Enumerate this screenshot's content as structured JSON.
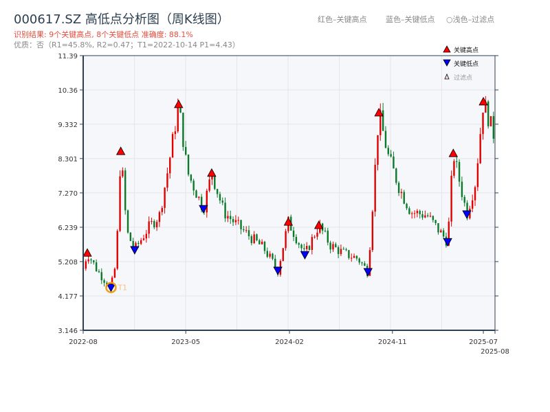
{
  "header": {
    "title": "000617.SZ 高低点分析图（周K线图）",
    "result": "识别结果: 9个关键高点, 8个关键低点  准确度: 88.1%",
    "quality": "优质：否（R1=45.8%, R2=0.47；T1=2022-10-14 P1=4.43）",
    "legend_red": "红色–关键高点",
    "legend_blue": "蓝色–关键低点",
    "legend_light": "○浅色–过滤点"
  },
  "chart_data": {
    "type": "candlestick",
    "title": "000617.SZ 高低点分析图（周K线图）",
    "x_range": [
      "2022-08-01",
      "2025-08-01"
    ],
    "ylim": [
      3.146,
      11.39
    ],
    "y_ticks": [
      "3.146",
      "4.177",
      "5.208",
      "6.239",
      "7.270",
      "8.301",
      "9.332",
      "10.36",
      "11.39"
    ],
    "x_ticks": [
      {
        "date": "2022-08-01",
        "label": "2022-08"
      },
      {
        "date": "2023-05-01",
        "label": "2023-05"
      },
      {
        "date": "2024-02-01",
        "label": "2024-02"
      },
      {
        "date": "2024-11-01",
        "label": "2024-11"
      },
      {
        "date": "2025-07-01",
        "label": "2025-07"
      },
      {
        "date": "2025-08-01",
        "label": "2025-08"
      }
    ],
    "grid": true,
    "colors": {
      "up": "#e00000",
      "down": "#0a7a2a",
      "high": "#ff0000",
      "low": "#0000ff",
      "t1": "#f39c12",
      "plot_bg": "#f5f7fa",
      "axis": "#2c3e50"
    },
    "legend": {
      "position": "top-right",
      "items": [
        "关键高点",
        "关键低点",
        "过滤点"
      ]
    },
    "price_path": [
      [
        "2022-08-01",
        5.0
      ],
      [
        "2022-08-12",
        5.47
      ],
      [
        "2022-09-10",
        4.9
      ],
      [
        "2022-10-14",
        4.43
      ],
      [
        "2022-10-28",
        5.2
      ],
      [
        "2022-11-09",
        8.52
      ],
      [
        "2022-11-25",
        6.1
      ],
      [
        "2022-12-16",
        5.56
      ],
      [
        "2023-01-20",
        6.2
      ],
      [
        "2023-02-20",
        6.6
      ],
      [
        "2023-03-15",
        8.0
      ],
      [
        "2023-04-12",
        9.93
      ],
      [
        "2023-05-05",
        7.9
      ],
      [
        "2023-06-17",
        6.79
      ],
      [
        "2023-07-09",
        7.87
      ],
      [
        "2023-08-10",
        6.7
      ],
      [
        "2023-09-15",
        6.3
      ],
      [
        "2023-10-20",
        5.95
      ],
      [
        "2023-11-25",
        5.6
      ],
      [
        "2024-01-01",
        4.94
      ],
      [
        "2024-01-29",
        6.4
      ],
      [
        "2024-03-13",
        5.41
      ],
      [
        "2024-04-19",
        6.3
      ],
      [
        "2024-05-20",
        5.7
      ],
      [
        "2024-06-25",
        5.45
      ],
      [
        "2024-08-01",
        5.3
      ],
      [
        "2024-08-28",
        4.9
      ],
      [
        "2024-09-26",
        9.68
      ],
      [
        "2024-10-20",
        8.4
      ],
      [
        "2024-11-20",
        7.4
      ],
      [
        "2024-12-20",
        6.7
      ],
      [
        "2025-02-01",
        6.6
      ],
      [
        "2025-03-28",
        5.8
      ],
      [
        "2025-04-12",
        8.46
      ],
      [
        "2025-05-18",
        6.63
      ],
      [
        "2025-06-10",
        7.6
      ],
      [
        "2025-07-01",
        10.01
      ],
      [
        "2025-08-01",
        8.9
      ]
    ],
    "key_highs": [
      [
        "2022-08-12",
        5.47
      ],
      [
        "2022-11-09",
        8.52
      ],
      [
        "2023-04-12",
        9.93
      ],
      [
        "2023-07-09",
        7.87
      ],
      [
        "2024-01-29",
        6.4
      ],
      [
        "2024-04-19",
        6.3
      ],
      [
        "2024-09-26",
        9.68
      ],
      [
        "2025-04-12",
        8.46
      ],
      [
        "2025-07-01",
        10.01
      ]
    ],
    "key_lows": [
      [
        "2022-10-14",
        4.43
      ],
      [
        "2022-12-16",
        5.56
      ],
      [
        "2023-06-17",
        6.79
      ],
      [
        "2024-01-01",
        4.94
      ],
      [
        "2024-03-13",
        5.41
      ],
      [
        "2024-08-28",
        4.9
      ],
      [
        "2025-03-28",
        5.8
      ],
      [
        "2025-05-18",
        6.63
      ]
    ],
    "t1": {
      "date": "2022-10-14",
      "price": 4.43,
      "label": "T1"
    }
  }
}
